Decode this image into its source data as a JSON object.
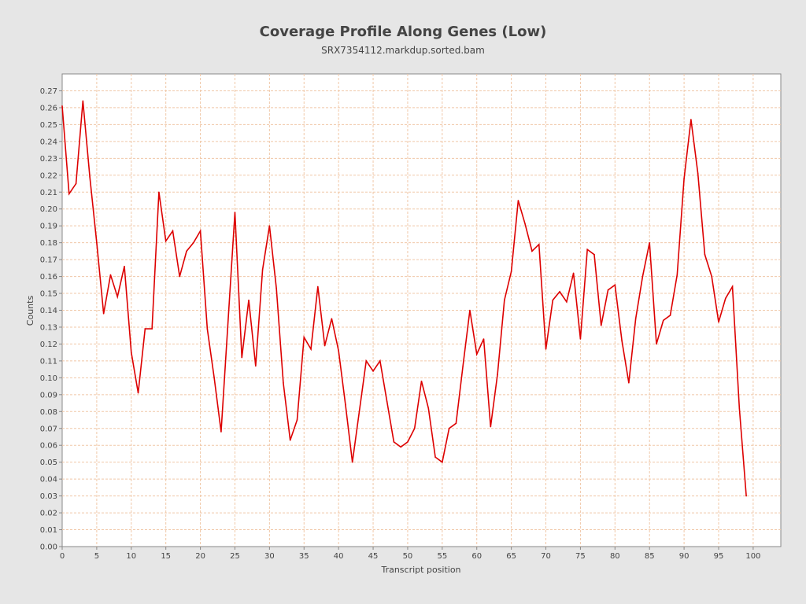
{
  "chart_data": {
    "type": "line",
    "title": "Coverage Profile Along Genes (Low)",
    "subtitle": "SRX7354112.markdup.sorted.bam",
    "xlabel": "Transcript position",
    "ylabel": "Counts",
    "xlim": [
      0,
      104
    ],
    "ylim": [
      0,
      0.28
    ],
    "x_ticks": [
      0,
      5,
      10,
      15,
      20,
      25,
      30,
      35,
      40,
      45,
      50,
      55,
      60,
      65,
      70,
      75,
      80,
      85,
      90,
      95,
      100
    ],
    "y_ticks": [
      0.0,
      0.01,
      0.02,
      0.03,
      0.04,
      0.05,
      0.06,
      0.07,
      0.08,
      0.09,
      0.1,
      0.11,
      0.12,
      0.13,
      0.14,
      0.15,
      0.16,
      0.17,
      0.18,
      0.19,
      0.2,
      0.21,
      0.22,
      0.23,
      0.24,
      0.25,
      0.26,
      0.27
    ],
    "grid": true,
    "colors": {
      "line": "#dd0000",
      "grid": "#f0c8a8",
      "plot_bg": "#ffffff",
      "page_bg": "#e6e6e6"
    },
    "series": [
      {
        "x": [
          0,
          1,
          2,
          3,
          4,
          5,
          6,
          7,
          8,
          9,
          10,
          11,
          12,
          13,
          14,
          15,
          16,
          17,
          18,
          19,
          20,
          21,
          22,
          23,
          24,
          25,
          26,
          27,
          28,
          29,
          30,
          31,
          32,
          33,
          34,
          35,
          36,
          37,
          38,
          39,
          40,
          41,
          42,
          43,
          44,
          45,
          46,
          47,
          48,
          49,
          50,
          51,
          52,
          53,
          54,
          55,
          56,
          57,
          58,
          59,
          60,
          61,
          62,
          63,
          64,
          65,
          66,
          67,
          68,
          69,
          70,
          71,
          72,
          73,
          74,
          75,
          76,
          77,
          78,
          79,
          80,
          81,
          82,
          83,
          84,
          85,
          86,
          87,
          88,
          89,
          90,
          91,
          92,
          93,
          94,
          95,
          96,
          97,
          98,
          99
        ],
        "values": [
          0.261,
          0.209,
          0.215,
          0.264,
          0.219,
          0.18,
          0.138,
          0.161,
          0.148,
          0.166,
          0.115,
          0.091,
          0.129,
          0.129,
          0.21,
          0.181,
          0.187,
          0.16,
          0.175,
          0.18,
          0.187,
          0.129,
          0.1,
          0.068,
          0.133,
          0.198,
          0.112,
          0.146,
          0.107,
          0.164,
          0.19,
          0.153,
          0.097,
          0.063,
          0.075,
          0.124,
          0.117,
          0.154,
          0.119,
          0.135,
          0.116,
          0.084,
          0.05,
          0.08,
          0.11,
          0.104,
          0.11,
          0.086,
          0.062,
          0.059,
          0.062,
          0.07,
          0.098,
          0.082,
          0.053,
          0.05,
          0.07,
          0.073,
          0.107,
          0.14,
          0.114,
          0.123,
          0.071,
          0.102,
          0.146,
          0.163,
          0.205,
          0.191,
          0.175,
          0.179,
          0.117,
          0.146,
          0.151,
          0.145,
          0.162,
          0.123,
          0.176,
          0.173,
          0.131,
          0.152,
          0.155,
          0.122,
          0.097,
          0.135,
          0.16,
          0.18,
          0.12,
          0.134,
          0.137,
          0.161,
          0.218,
          0.253,
          0.221,
          0.173,
          0.16,
          0.133,
          0.147,
          0.154,
          0.082,
          0.03
        ]
      }
    ]
  }
}
